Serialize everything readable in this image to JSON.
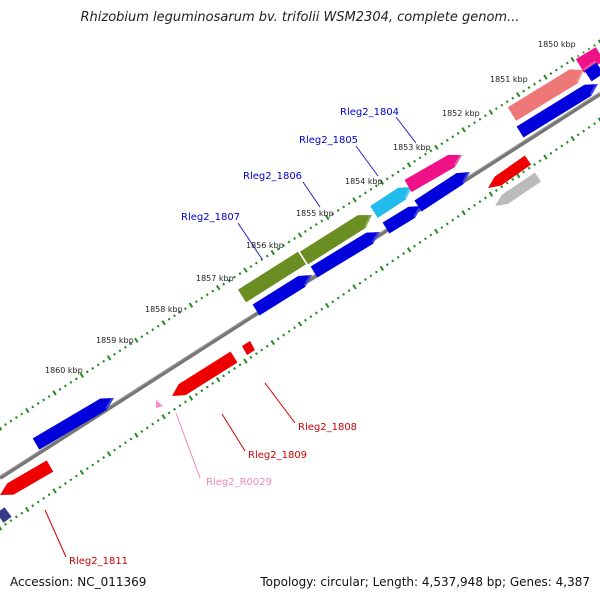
{
  "title": "Rhizobium leguminosarum bv. trifolii WSM2304, complete genom...",
  "footer": {
    "accession": "Accession: NC_011369",
    "topology": "Topology: circular; Length: 4,537,948 bp; Genes: 4,387"
  },
  "ticks": [
    "1850 kbp",
    "1851 kbp",
    "1852 kbp",
    "1853 kbp",
    "1854 kbp",
    "1855 kbp",
    "1856 kbp",
    "1857 kbp",
    "1858 kbp",
    "1859 kbp",
    "1860 kbp"
  ],
  "gene_labels": {
    "top": [
      "Rleg2_1804",
      "Rleg2_1805",
      "Rleg2_1806",
      "Rleg2_1807"
    ],
    "bottom": [
      "Rleg2_1808",
      "Rleg2_1809",
      "Rleg2_R0029",
      "Rleg2_1811"
    ]
  },
  "colors": {
    "blue": "#0000dd",
    "red": "#ee0000",
    "pink": "#ff88cc",
    "magenta": "#ee1188",
    "salmon": "#ee7777",
    "cyan": "#22bbee",
    "olive": "#6b8e23",
    "gray": "#bbbbbb",
    "navy": "#3a3a8a",
    "backbone": "#777777",
    "ticks": "#228b22",
    "label_blue": "#0000cc",
    "label_red": "#cc0000"
  }
}
